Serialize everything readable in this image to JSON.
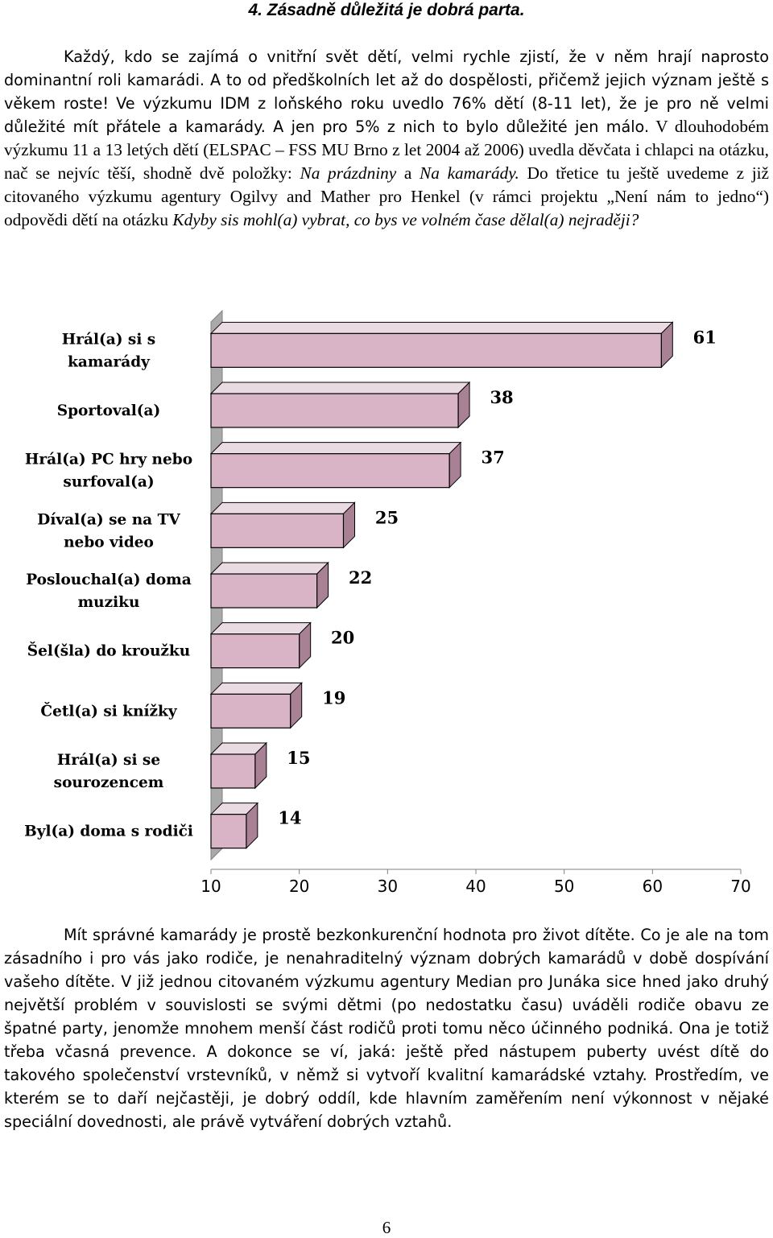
{
  "heading": "4. Zásadně důležitá je dobrá parta.",
  "intro": {
    "s1": "Každý, kdo se zajímá o vnitřní svět dětí, velmi rychle zjistí, že v něm hrají naprosto dominantní roli kamarádi. A to od předškolních let až do dospělosti, přičemž jejich význam ještě s věkem roste!",
    "s2": "Ve výzkumu IDM z loňského roku uvedlo 76% dětí (8-11 let), že je pro ně velmi důležité mít přátele a kamarády. A jen pro 5% z nich to bylo důležité jen málo.",
    "s3": "V dlouhodobém výzkumu 11 a 13 letých dětí (ELSPAC – FSS MU Brno z let 2004 až 2006) uvedla děvčata i chlapci na otázku, nač se nejvíc těší, shodně dvě položky:",
    "s3_item1": "Na prázdniny",
    "s3_and": "a",
    "s3_item2": "Na kamarády.",
    "s4": "Do třetice tu ještě uvedeme z již citovaného výzkumu agentury Ogilvy and Mather pro Henkel (v rámci projektu „Není nám to jedno“) odpovědi dětí na otázku",
    "s4_question": "Kdyby sis mohl(a) vybrat, co bys ve volném čase dělal(a) nejraději?"
  },
  "chart_data": {
    "type": "bar",
    "orientation": "horizontal",
    "style": "3d",
    "bar_color": "#d8b4c6",
    "categories": [
      [
        "Hrál(a) si s",
        "kamarády"
      ],
      [
        "Sportoval(a)"
      ],
      [
        "Hrál(a) PC hry nebo",
        "surfoval(a)"
      ],
      [
        "Díval(a) se na TV",
        "nebo video"
      ],
      [
        "Poslouchal(a) doma",
        "muziku"
      ],
      [
        "Šel(šla) do kroužku"
      ],
      [
        "Četl(a) si knížky"
      ],
      [
        "Hrál(a) si se",
        "sourozencem"
      ],
      [
        "Byl(a) doma s rodiči"
      ]
    ],
    "values": [
      61,
      38,
      37,
      25,
      22,
      20,
      19,
      15,
      14
    ],
    "value_labels": [
      "61",
      "38",
      "37",
      "25",
      "22",
      "20",
      "19",
      "15",
      "14"
    ],
    "xlim": [
      10,
      70
    ],
    "xticks": [
      "10",
      "20",
      "30",
      "40",
      "50",
      "60",
      "70"
    ],
    "grid": false,
    "legend": "none"
  },
  "outro": {
    "s1": "Mít správné kamarády je prostě bezkonkurenční hodnota pro život dítěte. Co je ale na tom zásadního i pro vás jako rodiče, je nenahraditelný význam dobrých kamarádů v době dospívání vašeho dítěte.",
    "s2": "V již jednou citovaném výzkumu agentury Median pro Junáka sice hned jako druhý největší problém v souvislosti se svými dětmi (po nedostatku času) uváděli rodiče obavu ze špatné party, jenomže mnohem menší část rodičů proti tomu něco účinného podniká. Ona je totiž třeba včasná prevence. A dokonce se ví, jaká: ještě před nástupem puberty uvést dítě do takového společenství vrstevníků, v němž si vytvoří kvalitní kamarádské vztahy. Prostředím, ve kterém se to daří nejčastěji, je dobrý oddíl, kde hlavním zaměřením není výkonnost v nějaké speciální dovednosti, ale právě vytváření dobrých vztahů."
  },
  "page_number": "6"
}
